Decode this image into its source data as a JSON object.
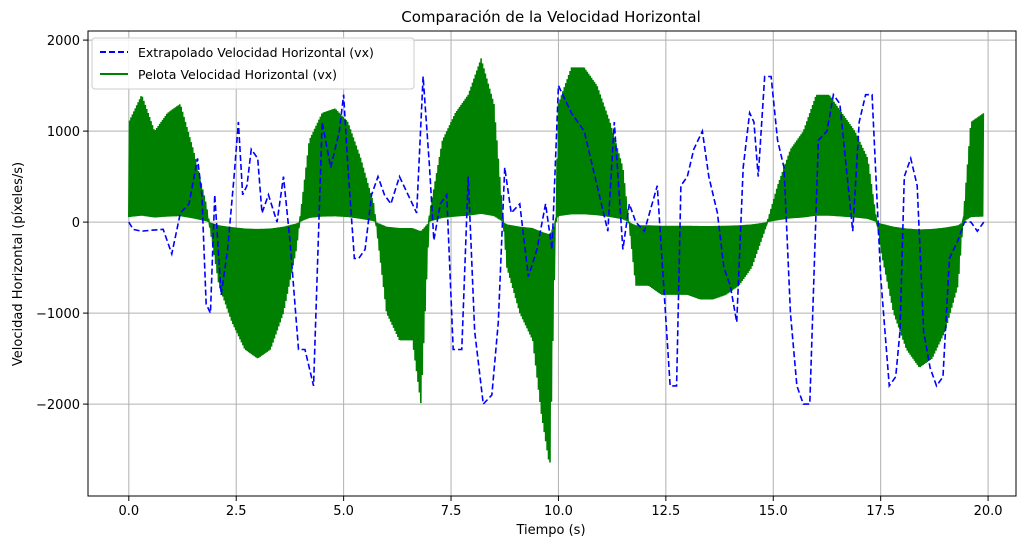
{
  "chart_data": {
    "type": "line",
    "title": "Comparación de la Velocidad Horizontal",
    "xlabel": "Tiempo (s)",
    "ylabel": "Velocidad Horizontal (píxeles/s)",
    "xlim": [
      -0.95,
      20.65
    ],
    "ylim": [
      -3010,
      2100
    ],
    "xticks": [
      0.0,
      2.5,
      5.0,
      7.5,
      10.0,
      12.5,
      15.0,
      17.5,
      20.0
    ],
    "xtick_labels": [
      "0.0",
      "2.5",
      "5.0",
      "7.5",
      "10.0",
      "12.5",
      "15.0",
      "17.5",
      "20.0"
    ],
    "yticks": [
      -2000,
      -1000,
      0,
      1000,
      2000
    ],
    "ytick_labels": [
      "−2000",
      "−1000",
      "0",
      "1000",
      "2000"
    ],
    "grid": true,
    "legend_position": "top-left",
    "series": [
      {
        "name": "Extrapolado Velocidad Horizontal (vx)",
        "color": "#0000ff",
        "style": "dashed",
        "x": [
          0.0,
          0.1,
          0.3,
          0.5,
          0.8,
          1.0,
          1.2,
          1.4,
          1.6,
          1.7,
          1.8,
          1.9,
          2.0,
          2.15,
          2.3,
          2.45,
          2.55,
          2.65,
          2.75,
          2.85,
          3.0,
          3.1,
          3.25,
          3.45,
          3.6,
          3.75,
          3.85,
          3.95,
          4.1,
          4.3,
          4.5,
          4.7,
          4.9,
          5.0,
          5.1,
          5.25,
          5.35,
          5.5,
          5.65,
          5.8,
          5.95,
          6.1,
          6.3,
          6.5,
          6.7,
          6.85,
          7.0,
          7.1,
          7.25,
          7.4,
          7.55,
          7.75,
          7.9,
          8.05,
          8.25,
          8.45,
          8.6,
          8.75,
          8.9,
          9.1,
          9.3,
          9.5,
          9.7,
          9.85,
          10.0,
          10.3,
          10.6,
          10.9,
          11.15,
          11.3,
          11.5,
          11.65,
          11.8,
          12.0,
          12.3,
          12.6,
          12.75,
          12.85,
          13.0,
          13.15,
          13.35,
          13.5,
          13.7,
          13.85,
          14.0,
          14.15,
          14.3,
          14.45,
          14.55,
          14.65,
          14.8,
          14.95,
          15.1,
          15.25,
          15.4,
          15.55,
          15.7,
          15.85,
          16.05,
          16.25,
          16.4,
          16.55,
          16.7,
          16.85,
          17.0,
          17.15,
          17.3,
          17.5,
          17.7,
          17.85,
          17.95,
          18.05,
          18.2,
          18.35,
          18.5,
          18.65,
          18.8,
          18.95,
          19.1,
          19.3,
          19.45,
          19.6,
          19.75,
          19.9
        ],
        "y": [
          0,
          -80,
          -100,
          -90,
          -80,
          -350,
          100,
          200,
          700,
          300,
          -900,
          -1000,
          300,
          -800,
          -300,
          500,
          1100,
          300,
          400,
          800,
          700,
          100,
          300,
          0,
          500,
          -200,
          -800,
          -1400,
          -1400,
          -1800,
          1100,
          600,
          1000,
          1400,
          600,
          -400,
          -400,
          -300,
          300,
          500,
          300,
          200,
          500,
          300,
          100,
          1600,
          600,
          -200,
          200,
          300,
          -1400,
          -1400,
          500,
          -1200,
          -2000,
          -1900,
          -1100,
          600,
          100,
          200,
          -600,
          -300,
          200,
          -300,
          1500,
          1200,
          1000,
          400,
          -100,
          1100,
          -300,
          200,
          0,
          -100,
          400,
          -1800,
          -1800,
          400,
          500,
          800,
          1000,
          500,
          100,
          -500,
          -700,
          -1100,
          600,
          1200,
          1100,
          500,
          1600,
          1600,
          900,
          600,
          -1000,
          -1800,
          -2000,
          -2000,
          900,
          1000,
          1400,
          1300,
          600,
          -100,
          1100,
          1400,
          1400,
          -600,
          -1800,
          -1700,
          -1200,
          500,
          700,
          400,
          -1200,
          -1600,
          -1800,
          -1700,
          -400,
          -200,
          0,
          0,
          -100,
          0
        ]
      },
      {
        "name": "Pelota Velocidad Horizontal (vx)",
        "color": "#008000",
        "style": "solid-filled",
        "x": [
          0.0,
          0.3,
          0.6,
          0.9,
          1.2,
          1.5,
          1.8,
          2.1,
          2.4,
          2.7,
          3.0,
          3.3,
          3.6,
          3.9,
          4.2,
          4.5,
          4.8,
          5.1,
          5.4,
          5.7,
          6.0,
          6.3,
          6.6,
          6.8,
          7.0,
          7.3,
          7.6,
          7.9,
          8.2,
          8.5,
          8.8,
          9.1,
          9.4,
          9.6,
          9.8,
          10.0,
          10.3,
          10.6,
          10.9,
          11.2,
          11.5,
          11.8,
          12.1,
          12.4,
          12.7,
          13.0,
          13.3,
          13.6,
          13.9,
          14.2,
          14.5,
          14.8,
          15.1,
          15.4,
          15.7,
          16.0,
          16.3,
          16.6,
          16.9,
          17.2,
          17.5,
          17.8,
          18.1,
          18.4,
          18.7,
          19.0,
          19.3,
          19.6,
          19.9
        ],
        "y": [
          1100,
          1400,
          1000,
          1200,
          1300,
          800,
          200,
          -700,
          -1100,
          -1400,
          -1500,
          -1400,
          -1000,
          -300,
          900,
          1200,
          1250,
          1100,
          700,
          200,
          -1000,
          -1300,
          -1300,
          -2000,
          100,
          900,
          1200,
          1400,
          1800,
          1300,
          -500,
          -1000,
          -1300,
          -2100,
          -2700,
          1300,
          1700,
          1700,
          1500,
          1100,
          600,
          -700,
          -700,
          -800,
          -800,
          -800,
          -850,
          -850,
          -800,
          -700,
          -500,
          -100,
          400,
          800,
          1000,
          1400,
          1400,
          1200,
          1000,
          700,
          -300,
          -1000,
          -1400,
          -1600,
          -1500,
          -1200,
          -700,
          1100,
          1200
        ]
      }
    ]
  }
}
